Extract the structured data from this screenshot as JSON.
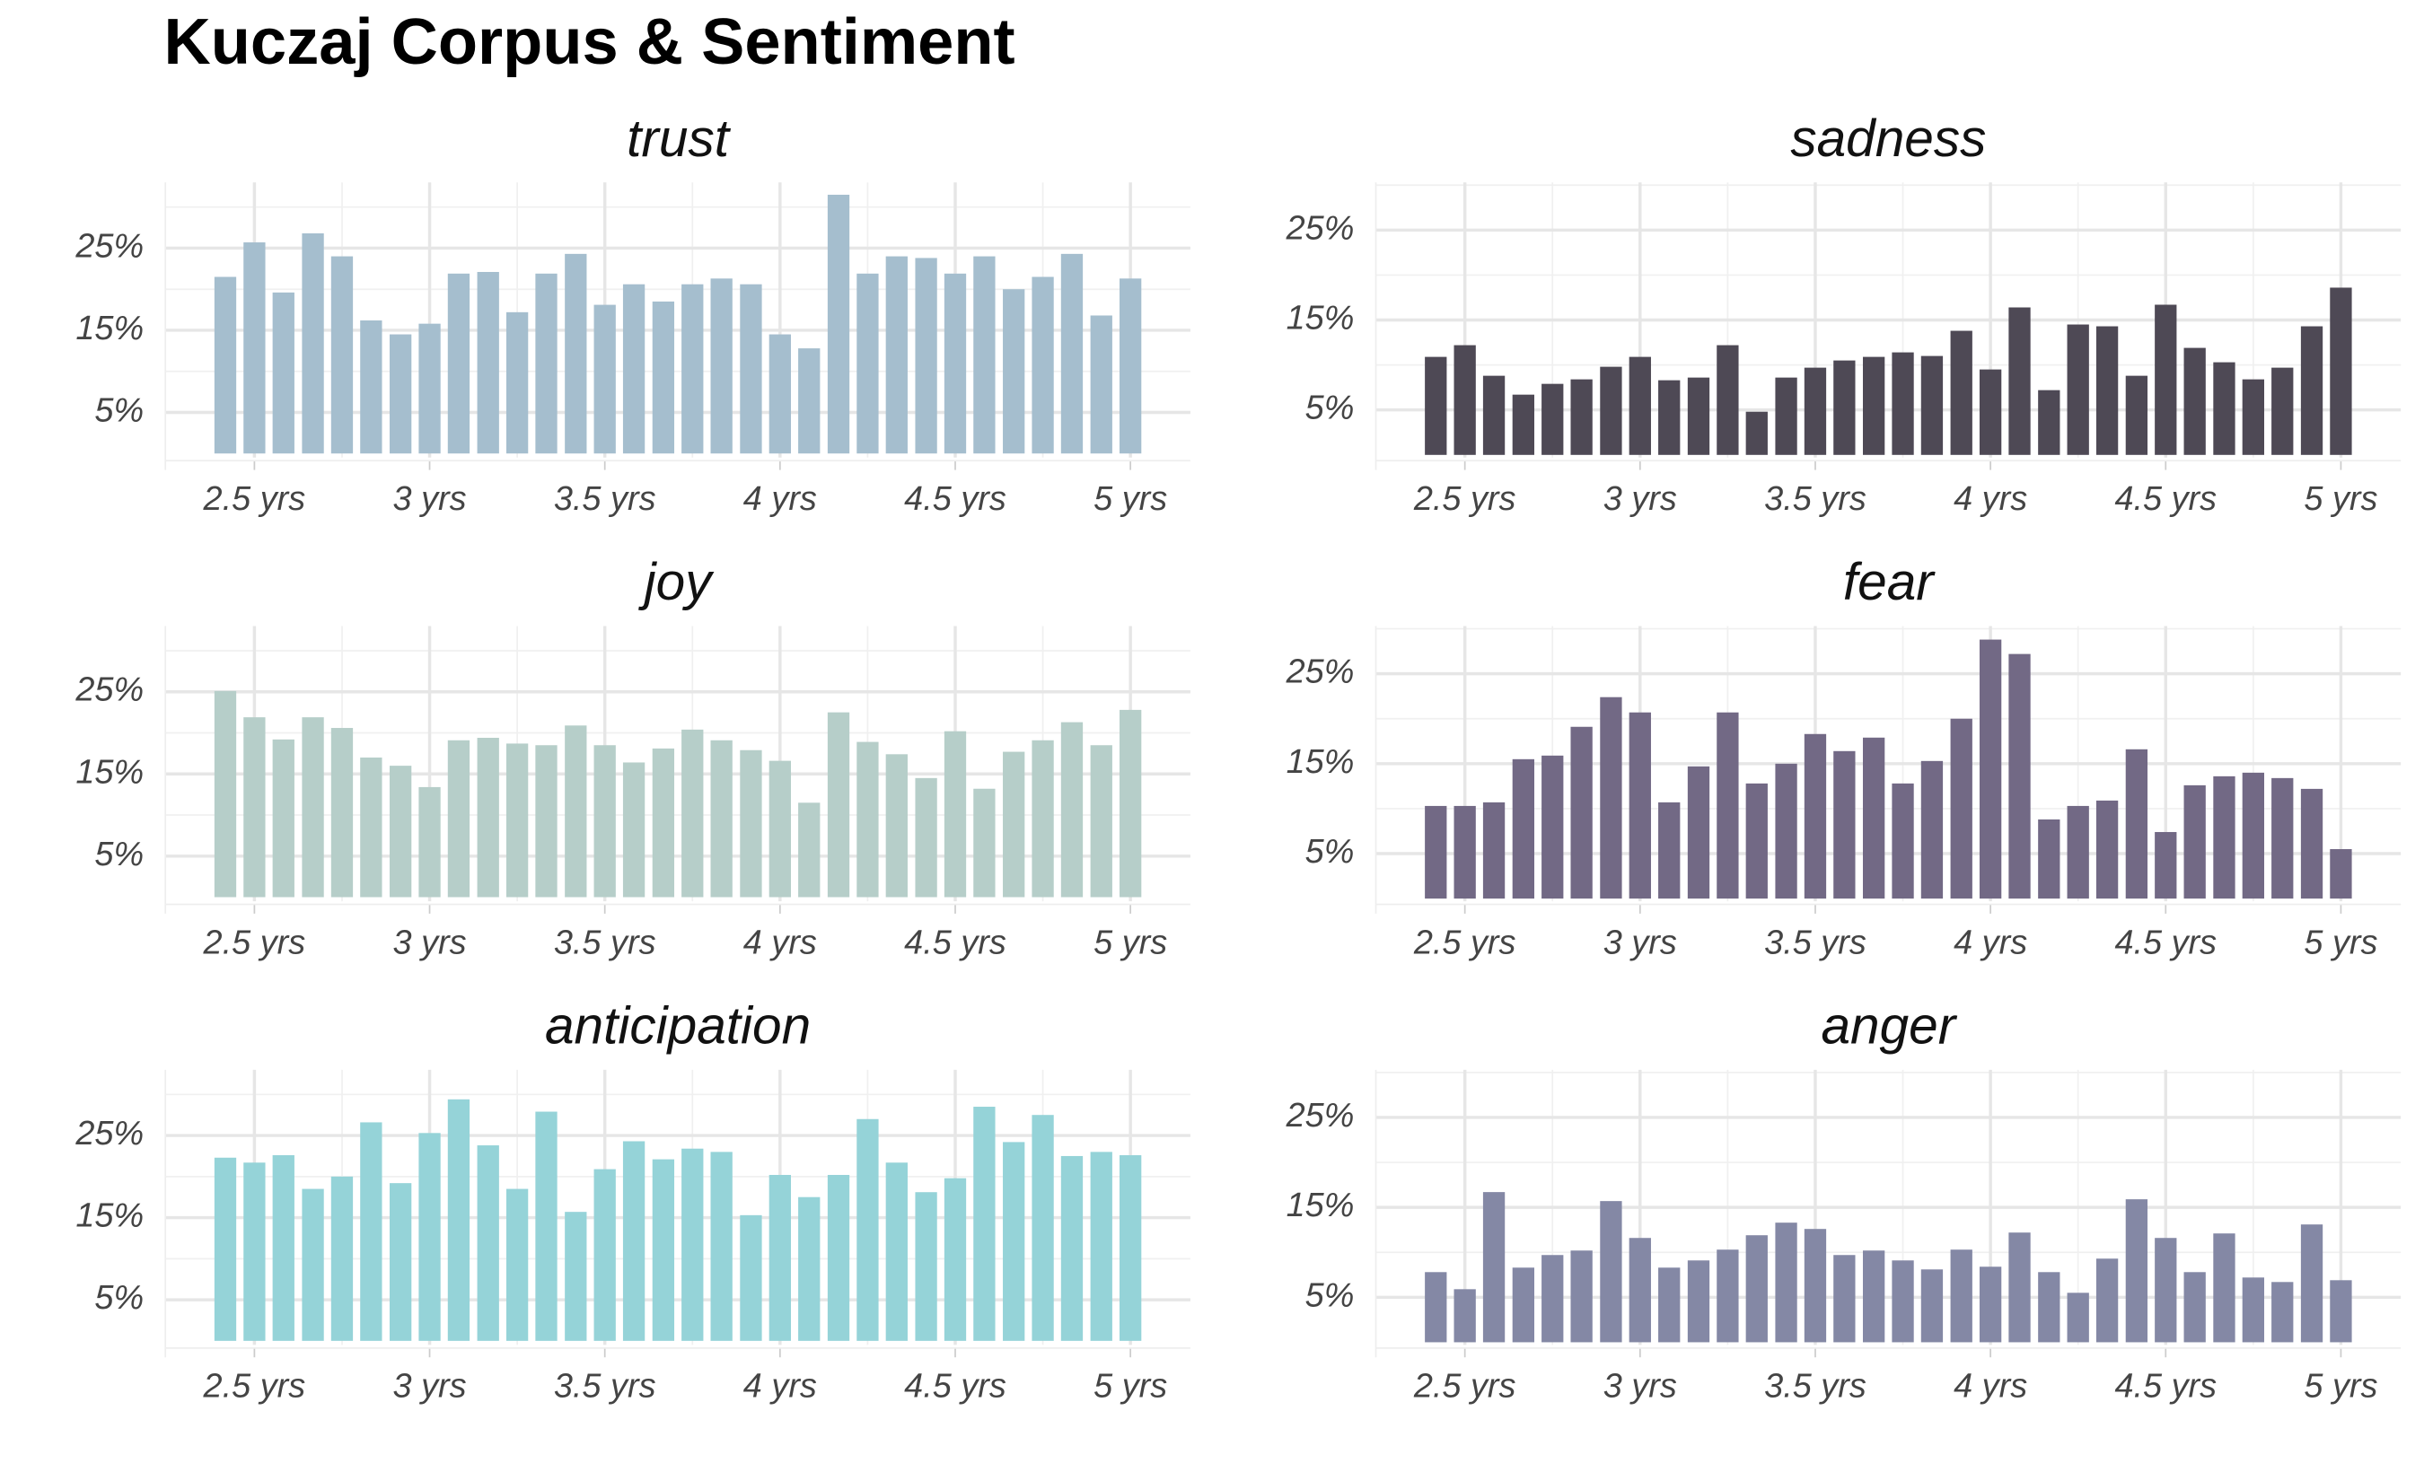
{
  "title": "Kuczaj Corpus & Sentiment",
  "chart_data": [
    {
      "type": "bar",
      "title": "trust",
      "color": "#a5bece",
      "x": [
        2.417,
        2.5,
        2.583,
        2.667,
        2.75,
        2.833,
        2.917,
        3,
        3.083,
        3.167,
        3.25,
        3.333,
        3.417,
        3.5,
        3.583,
        3.667,
        3.75,
        3.833,
        3.917,
        4,
        4.083,
        4.167,
        4.25,
        4.333,
        4.417,
        4.5,
        4.583,
        4.667,
        4.75,
        4.833,
        4.917,
        5
      ],
      "values": [
        21.5,
        25.7,
        19.6,
        26.8,
        24.0,
        16.2,
        14.5,
        15.8,
        21.9,
        22.1,
        17.2,
        21.9,
        24.3,
        18.1,
        20.6,
        18.5,
        20.6,
        21.3,
        20.6,
        14.5,
        12.8,
        31.5,
        21.9,
        24.0,
        23.8,
        21.9,
        24.0,
        20.0,
        21.5,
        24.3,
        16.8,
        21.3
      ],
      "xlim": [
        2.246,
        5.171
      ],
      "ylim": [
        -0.5,
        33
      ],
      "xticks": [
        {
          "value": 2.5,
          "label": "2.5 yrs"
        },
        {
          "value": 3,
          "label": "3 yrs"
        },
        {
          "value": 3.5,
          "label": "3.5 yrs"
        },
        {
          "value": 4,
          "label": "4 yrs"
        },
        {
          "value": 4.5,
          "label": "4.5 yrs"
        },
        {
          "value": 5,
          "label": "5 yrs"
        }
      ],
      "xminor": [
        2.75,
        3.25,
        3.75,
        4.25,
        4.75
      ],
      "yticks": [
        {
          "value": 5,
          "label": "5%"
        },
        {
          "value": 15,
          "label": "15%"
        },
        {
          "value": 25,
          "label": "25%"
        }
      ],
      "yminor": [
        10,
        20,
        30
      ],
      "grid": true
    },
    {
      "type": "bar",
      "title": "sadness",
      "color": "#4e4955",
      "x": [
        2.417,
        2.5,
        2.583,
        2.667,
        2.75,
        2.833,
        2.917,
        3,
        3.083,
        3.167,
        3.25,
        3.333,
        3.417,
        3.5,
        3.583,
        3.667,
        3.75,
        3.833,
        3.917,
        4,
        4.083,
        4.167,
        4.25,
        4.333,
        4.417,
        4.5,
        4.583,
        4.667,
        4.75,
        4.833,
        4.917,
        5
      ],
      "values": [
        10.9,
        12.2,
        8.8,
        6.7,
        7.9,
        8.4,
        9.8,
        10.9,
        8.3,
        8.6,
        12.2,
        4.8,
        8.6,
        9.7,
        10.5,
        10.9,
        11.4,
        11.0,
        13.8,
        9.5,
        16.4,
        7.2,
        14.5,
        14.3,
        8.8,
        16.7,
        11.9,
        10.3,
        8.4,
        9.7,
        14.3,
        18.6
      ],
      "xlim": [
        2.246,
        5.171
      ],
      "ylim": [
        -0.3,
        30.3
      ],
      "xticks": [
        {
          "value": 2.5,
          "label": "2.5 yrs"
        },
        {
          "value": 3,
          "label": "3 yrs"
        },
        {
          "value": 3.5,
          "label": "3.5 yrs"
        },
        {
          "value": 4,
          "label": "4 yrs"
        },
        {
          "value": 4.5,
          "label": "4.5 yrs"
        },
        {
          "value": 5,
          "label": "5 yrs"
        }
      ],
      "xminor": [
        2.75,
        3.25,
        3.75,
        4.25,
        4.75
      ],
      "yticks": [
        {
          "value": 5,
          "label": "5%"
        },
        {
          "value": 15,
          "label": "15%"
        },
        {
          "value": 25,
          "label": "25%"
        }
      ],
      "yminor": [
        10,
        20,
        30
      ],
      "grid": true
    },
    {
      "type": "bar",
      "title": "joy",
      "color": "#b6cec9",
      "x": [
        2.417,
        2.5,
        2.583,
        2.667,
        2.75,
        2.833,
        2.917,
        3,
        3.083,
        3.167,
        3.25,
        3.333,
        3.417,
        3.5,
        3.583,
        3.667,
        3.75,
        3.833,
        3.917,
        4,
        4.083,
        4.167,
        4.25,
        4.333,
        4.417,
        4.5,
        4.583,
        4.667,
        4.75,
        4.833,
        4.917,
        5
      ],
      "values": [
        25.1,
        21.9,
        19.2,
        21.9,
        20.6,
        17.0,
        16.0,
        13.4,
        19.1,
        19.4,
        18.7,
        18.5,
        20.9,
        18.5,
        16.4,
        18.1,
        20.4,
        19.1,
        17.9,
        16.6,
        11.5,
        22.5,
        18.9,
        17.4,
        14.5,
        20.2,
        13.2,
        17.7,
        19.1,
        21.3,
        18.5,
        22.8
      ],
      "xlim": [
        2.246,
        5.171
      ],
      "ylim": [
        -0.5,
        33
      ],
      "xticks": [
        {
          "value": 2.5,
          "label": "2.5 yrs"
        },
        {
          "value": 3,
          "label": "3 yrs"
        },
        {
          "value": 3.5,
          "label": "3.5 yrs"
        },
        {
          "value": 4,
          "label": "4 yrs"
        },
        {
          "value": 4.5,
          "label": "4.5 yrs"
        },
        {
          "value": 5,
          "label": "5 yrs"
        }
      ],
      "xminor": [
        2.75,
        3.25,
        3.75,
        4.25,
        4.75
      ],
      "yticks": [
        {
          "value": 5,
          "label": "5%"
        },
        {
          "value": 15,
          "label": "15%"
        },
        {
          "value": 25,
          "label": "25%"
        }
      ],
      "yminor": [
        10,
        20,
        30
      ],
      "grid": true
    },
    {
      "type": "bar",
      "title": "fear",
      "color": "#726985",
      "x": [
        2.417,
        2.5,
        2.583,
        2.667,
        2.75,
        2.833,
        2.917,
        3,
        3.083,
        3.167,
        3.25,
        3.333,
        3.417,
        3.5,
        3.583,
        3.667,
        3.75,
        3.833,
        3.917,
        4,
        4.083,
        4.167,
        4.25,
        4.333,
        4.417,
        4.5,
        4.583,
        4.667,
        4.75,
        4.833,
        4.917,
        5
      ],
      "values": [
        10.3,
        10.3,
        10.7,
        15.5,
        15.9,
        19.1,
        22.4,
        20.7,
        10.7,
        14.7,
        20.7,
        12.8,
        15.0,
        18.3,
        16.4,
        17.9,
        12.8,
        15.3,
        20.0,
        28.8,
        27.2,
        8.8,
        10.3,
        10.9,
        16.6,
        7.4,
        12.6,
        13.6,
        14.0,
        13.4,
        12.2,
        5.5
      ],
      "xlim": [
        2.246,
        5.171
      ],
      "ylim": [
        -0.3,
        30.3
      ],
      "xticks": [
        {
          "value": 2.5,
          "label": "2.5 yrs"
        },
        {
          "value": 3,
          "label": "3 yrs"
        },
        {
          "value": 3.5,
          "label": "3.5 yrs"
        },
        {
          "value": 4,
          "label": "4 yrs"
        },
        {
          "value": 4.5,
          "label": "4.5 yrs"
        },
        {
          "value": 5,
          "label": "5 yrs"
        }
      ],
      "xminor": [
        2.75,
        3.25,
        3.75,
        4.25,
        4.75
      ],
      "yticks": [
        {
          "value": 5,
          "label": "5%"
        },
        {
          "value": 15,
          "label": "15%"
        },
        {
          "value": 25,
          "label": "25%"
        }
      ],
      "yminor": [
        10,
        20,
        30
      ],
      "grid": true
    },
    {
      "type": "bar",
      "title": "anticipation",
      "color": "#95d3d8",
      "x": [
        2.417,
        2.5,
        2.583,
        2.667,
        2.75,
        2.833,
        2.917,
        3,
        3.083,
        3.167,
        3.25,
        3.333,
        3.417,
        3.5,
        3.583,
        3.667,
        3.75,
        3.833,
        3.917,
        4,
        4.083,
        4.167,
        4.25,
        4.333,
        4.417,
        4.5,
        4.583,
        4.667,
        4.75,
        4.833,
        4.917,
        5
      ],
      "values": [
        22.3,
        21.7,
        22.6,
        18.5,
        20.0,
        26.6,
        19.2,
        25.3,
        29.4,
        23.8,
        18.5,
        27.9,
        15.7,
        20.9,
        24.3,
        22.1,
        23.4,
        23.0,
        15.3,
        20.2,
        17.5,
        20.2,
        27.0,
        21.7,
        18.1,
        19.8,
        28.5,
        24.2,
        27.5,
        22.5,
        23.0,
        22.6
      ],
      "xlim": [
        2.246,
        5.171
      ],
      "ylim": [
        -0.5,
        33
      ],
      "xticks": [
        {
          "value": 2.5,
          "label": "2.5 yrs"
        },
        {
          "value": 3,
          "label": "3 yrs"
        },
        {
          "value": 3.5,
          "label": "3.5 yrs"
        },
        {
          "value": 4,
          "label": "4 yrs"
        },
        {
          "value": 4.5,
          "label": "4.5 yrs"
        },
        {
          "value": 5,
          "label": "5 yrs"
        }
      ],
      "xminor": [
        2.75,
        3.25,
        3.75,
        4.25,
        4.75
      ],
      "yticks": [
        {
          "value": 5,
          "label": "5%"
        },
        {
          "value": 15,
          "label": "15%"
        },
        {
          "value": 25,
          "label": "25%"
        }
      ],
      "yminor": [
        10,
        20,
        30
      ],
      "grid": true
    },
    {
      "type": "bar",
      "title": "anger",
      "color": "#8488a5",
      "x": [
        2.417,
        2.5,
        2.583,
        2.667,
        2.75,
        2.833,
        2.917,
        3,
        3.083,
        3.167,
        3.25,
        3.333,
        3.417,
        3.5,
        3.583,
        3.667,
        3.75,
        3.833,
        3.917,
        4,
        4.083,
        4.167,
        4.25,
        4.333,
        4.417,
        4.5,
        4.583,
        4.667,
        4.75,
        4.833,
        4.917,
        5
      ],
      "values": [
        7.8,
        5.9,
        16.7,
        8.3,
        9.7,
        10.2,
        15.7,
        11.6,
        8.3,
        9.1,
        10.3,
        11.9,
        13.3,
        12.6,
        9.7,
        10.2,
        9.1,
        8.1,
        10.3,
        8.4,
        12.2,
        7.8,
        5.5,
        9.3,
        15.9,
        11.6,
        7.8,
        12.1,
        7.2,
        6.7,
        13.1,
        6.9
      ],
      "xlim": [
        2.246,
        5.171
      ],
      "ylim": [
        -0.3,
        30.3
      ],
      "xticks": [
        {
          "value": 2.5,
          "label": "2.5 yrs"
        },
        {
          "value": 3,
          "label": "3 yrs"
        },
        {
          "value": 3.5,
          "label": "3.5 yrs"
        },
        {
          "value": 4,
          "label": "4 yrs"
        },
        {
          "value": 4.5,
          "label": "4.5 yrs"
        },
        {
          "value": 5,
          "label": "5 yrs"
        }
      ],
      "xminor": [
        2.75,
        3.25,
        3.75,
        4.25,
        4.75
      ],
      "yticks": [
        {
          "value": 5,
          "label": "5%"
        },
        {
          "value": 15,
          "label": "15%"
        },
        {
          "value": 25,
          "label": "25%"
        }
      ],
      "yminor": [
        10,
        20,
        30
      ],
      "grid": true
    }
  ]
}
